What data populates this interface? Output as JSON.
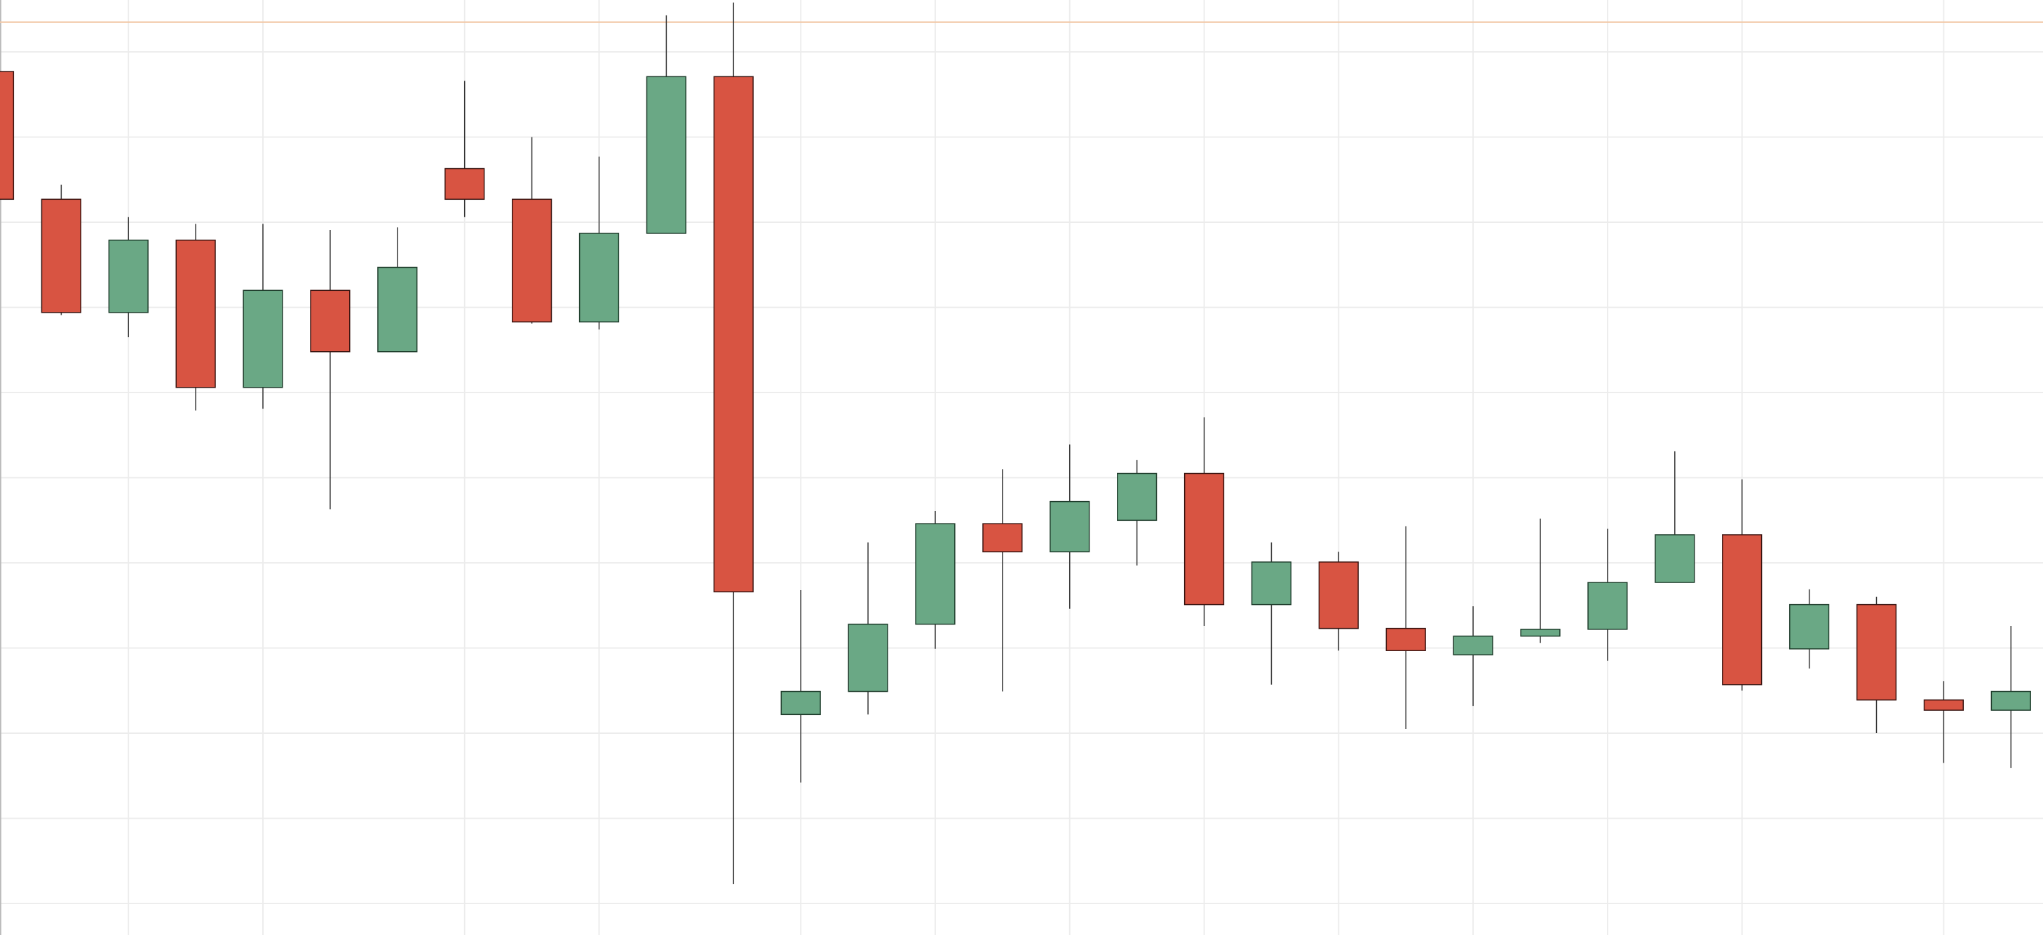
{
  "chart_data": {
    "type": "candlestick",
    "categories": [
      null,
      null,
      null,
      null,
      null,
      null,
      null,
      null,
      null,
      null,
      null,
      null,
      null,
      null,
      null,
      null,
      null,
      null,
      null,
      null,
      null,
      null,
      null,
      null,
      null,
      null,
      null,
      null,
      null,
      null,
      null
    ],
    "open": [
      10.77,
      9.27,
      7.94,
      8.79,
      7.06,
      8.2,
      7.48,
      9.63,
      9.27,
      7.83,
      8.87,
      10.71,
      3.22,
      3.49,
      4.28,
      5.46,
      5.13,
      5.5,
      6.05,
      4.51,
      5.01,
      4.23,
      3.92,
      4.14,
      4.22,
      4.77,
      5.33,
      3.99,
      4.51,
      3.39,
      3.27
    ],
    "high": [
      10.77,
      9.44,
      9.06,
      8.98,
      8.98,
      8.91,
      8.94,
      10.66,
      10.0,
      9.77,
      11.43,
      11.58,
      4.68,
      5.24,
      5.61,
      6.1,
      6.39,
      6.21,
      6.71,
      5.24,
      5.13,
      5.43,
      4.49,
      5.52,
      5.4,
      6.31,
      5.98,
      4.69,
      4.6,
      3.61,
      4.26
    ],
    "low": [
      9.27,
      7.91,
      7.65,
      6.79,
      6.81,
      5.63,
      7.48,
      9.06,
      7.81,
      7.74,
      8.87,
      1.23,
      2.42,
      3.22,
      3.99,
      3.49,
      4.46,
      4.97,
      4.26,
      3.57,
      3.97,
      3.05,
      3.32,
      4.06,
      3.85,
      4.77,
      3.5,
      3.76,
      3.0,
      2.65,
      2.59
    ],
    "close": [
      9.27,
      7.94,
      8.79,
      7.06,
      8.2,
      7.48,
      8.47,
      9.27,
      7.83,
      8.87,
      10.71,
      4.66,
      3.49,
      4.28,
      5.46,
      5.13,
      5.72,
      6.05,
      4.51,
      5.01,
      4.23,
      3.97,
      4.14,
      4.22,
      4.77,
      5.33,
      3.57,
      4.51,
      3.39,
      3.27,
      3.49
    ],
    "up_color": "#6aa885",
    "down_color": "#d85442",
    "ylim": [
      0.63,
      11.61
    ],
    "yticks": [
      1,
      2,
      3,
      4,
      5,
      6,
      7,
      8,
      9,
      10,
      11
    ],
    "grid": true,
    "x_grid_at": [
      2,
      4,
      7,
      9,
      12,
      14,
      16,
      18,
      20,
      22,
      24,
      26,
      29
    ],
    "reference_line": {
      "value": 11.35,
      "color": "#f2c9a8"
    }
  }
}
